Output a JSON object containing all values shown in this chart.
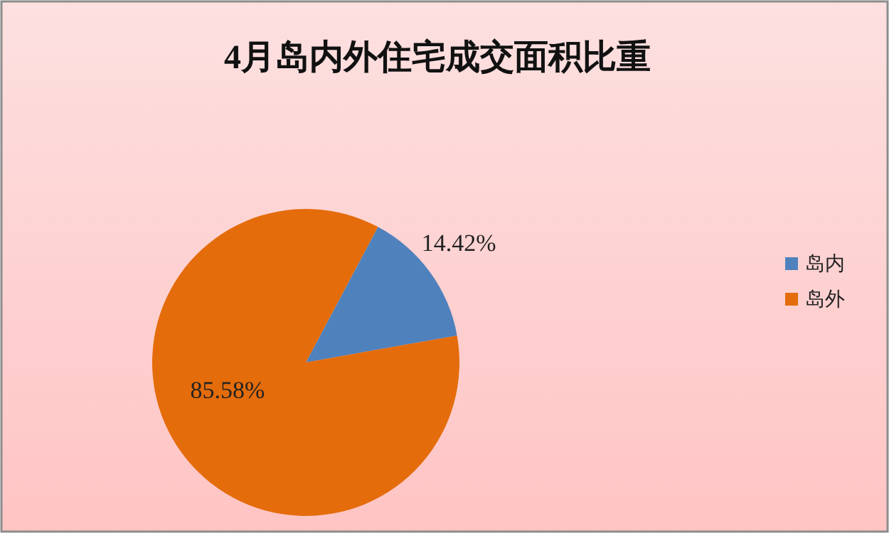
{
  "chart_data": {
    "type": "pie",
    "title": "4月岛内外住宅成交面积比重",
    "categories": [
      "岛内",
      "岛外"
    ],
    "values": [
      14.42,
      85.58
    ],
    "colors": [
      "#4f81bd",
      "#e46c0a"
    ],
    "value_labels": [
      "14.42%",
      "85.58%"
    ],
    "legend": "right"
  }
}
